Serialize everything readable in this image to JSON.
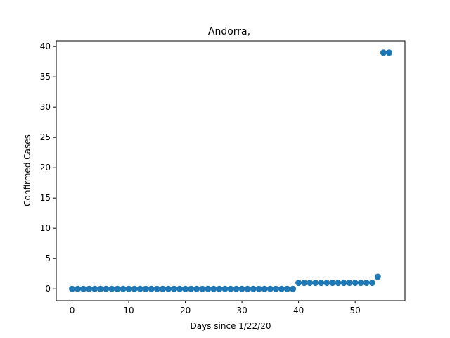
{
  "chart_data": {
    "type": "scatter",
    "title": "Andorra,",
    "xlabel": "Days since 1/22/20",
    "ylabel": "Confirmed Cases",
    "xlim": [
      -2.8,
      58.8
    ],
    "ylim": [
      -1.95,
      40.95
    ],
    "xticks": [
      0,
      10,
      20,
      30,
      40,
      50
    ],
    "yticks": [
      0,
      5,
      10,
      15,
      20,
      25,
      30,
      35,
      40
    ],
    "grid": false,
    "marker_color": "#1f77b4",
    "x": [
      0,
      1,
      2,
      3,
      4,
      5,
      6,
      7,
      8,
      9,
      10,
      11,
      12,
      13,
      14,
      15,
      16,
      17,
      18,
      19,
      20,
      21,
      22,
      23,
      24,
      25,
      26,
      27,
      28,
      29,
      30,
      31,
      32,
      33,
      34,
      35,
      36,
      37,
      38,
      39,
      40,
      41,
      42,
      43,
      44,
      45,
      46,
      47,
      48,
      49,
      50,
      51,
      52,
      53,
      54,
      55,
      56
    ],
    "y": [
      0,
      0,
      0,
      0,
      0,
      0,
      0,
      0,
      0,
      0,
      0,
      0,
      0,
      0,
      0,
      0,
      0,
      0,
      0,
      0,
      0,
      0,
      0,
      0,
      0,
      0,
      0,
      0,
      0,
      0,
      0,
      0,
      0,
      0,
      0,
      0,
      0,
      0,
      0,
      0,
      1,
      1,
      1,
      1,
      1,
      1,
      1,
      1,
      1,
      1,
      1,
      1,
      1,
      1,
      2,
      39,
      39
    ]
  }
}
